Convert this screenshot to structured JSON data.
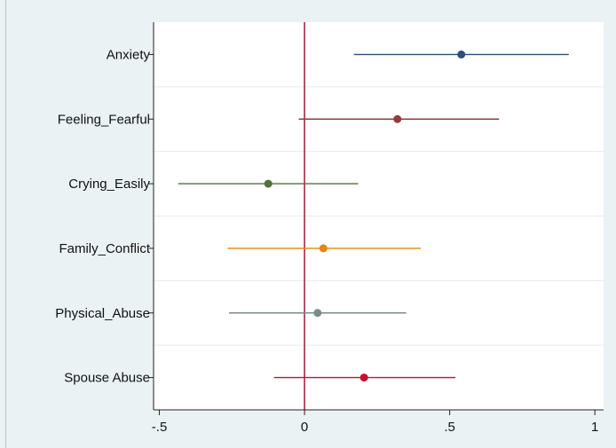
{
  "chart_data": {
    "type": "scatter",
    "title": "",
    "xlabel": "",
    "ylabel": "",
    "xlim": [
      -0.52,
      1.03
    ],
    "x_ticks": [
      {
        "value": -0.5,
        "label": "-.5"
      },
      {
        "value": 0,
        "label": "0"
      },
      {
        "value": 0.5,
        "label": ".5"
      },
      {
        "value": 1,
        "label": "1"
      }
    ],
    "reference_line": {
      "x": 0,
      "color": "#9b1b3a"
    },
    "grid": "horizontal",
    "legend": "none",
    "categories": [
      "Anxiety",
      "Feeling_Fearful",
      "Crying_Easily",
      "Family_Conflict",
      "Physical_Abuse",
      "Spouse Abuse"
    ],
    "series": [
      {
        "estimate": 0.54,
        "ci_low": 0.17,
        "ci_high": 0.91,
        "color": "#2b4f7e"
      },
      {
        "estimate": 0.32,
        "ci_low": -0.02,
        "ci_high": 0.67,
        "color": "#943a3c"
      },
      {
        "estimate": -0.125,
        "ci_low": -0.435,
        "ci_high": 0.185,
        "color": "#55703a"
      },
      {
        "estimate": 0.065,
        "ci_low": -0.265,
        "ci_high": 0.4,
        "color": "#e8850e"
      },
      {
        "estimate": 0.045,
        "ci_low": -0.26,
        "ci_high": 0.35,
        "color": "#7b8b88"
      },
      {
        "estimate": 0.205,
        "ci_low": -0.105,
        "ci_high": 0.52,
        "color": "#c8102e"
      }
    ]
  }
}
